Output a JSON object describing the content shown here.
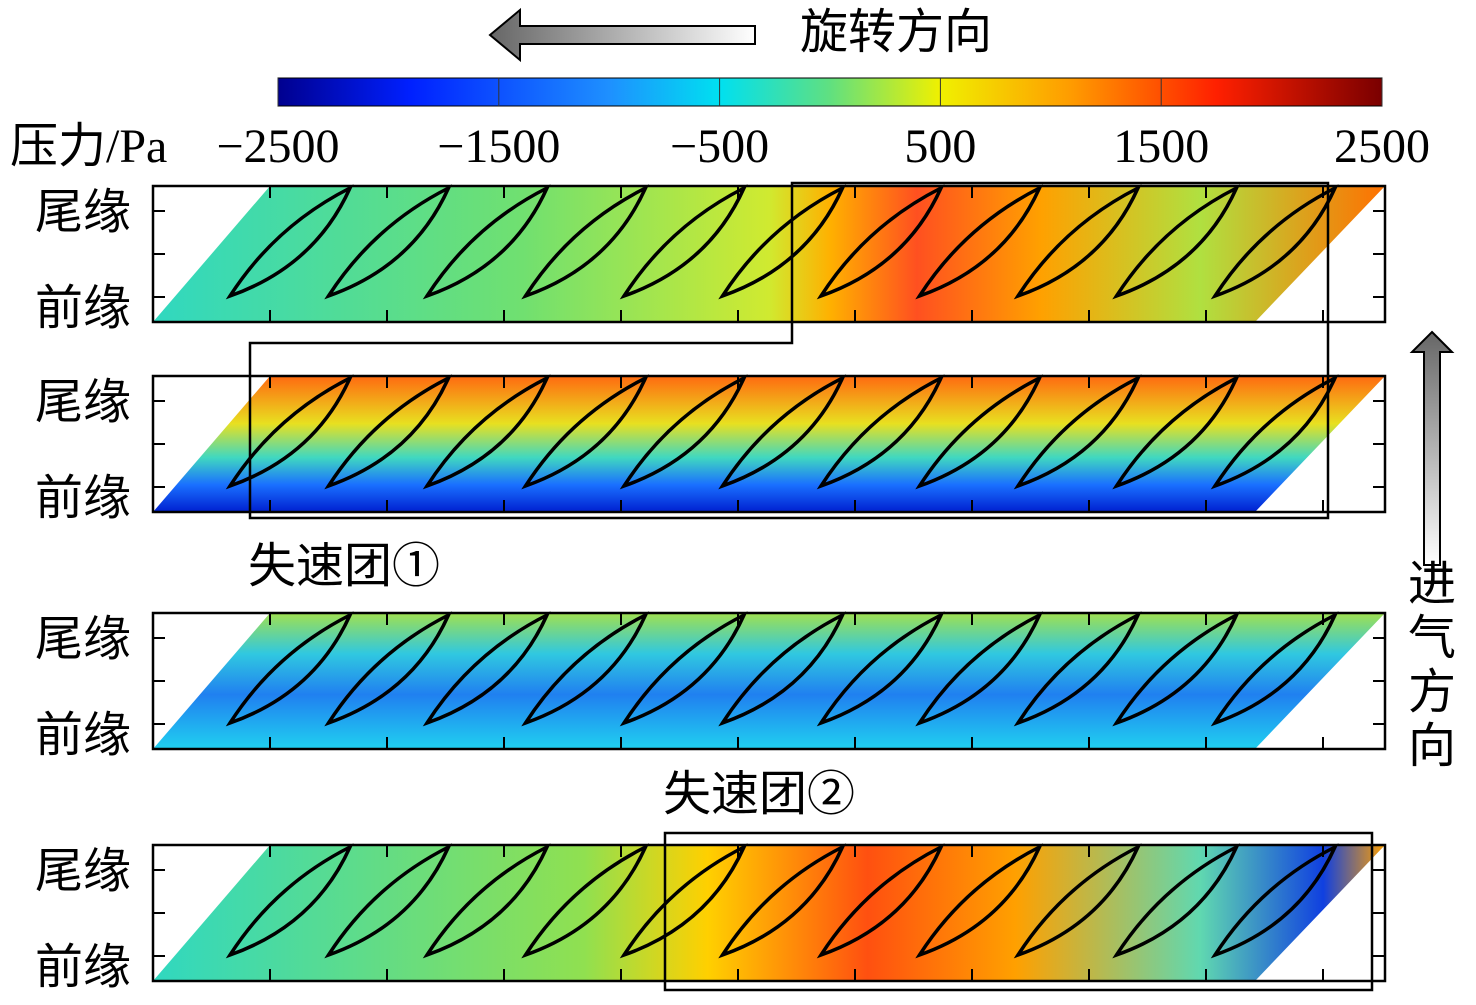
{
  "rotation_label": "旋转方向",
  "inflow_label": "进气方向",
  "colorbar": {
    "label": "压力/Pa",
    "lim": [
      -2500,
      2500
    ],
    "ticks": [
      {
        "value": -2500,
        "label": "−2500"
      },
      {
        "value": -1500,
        "label": "−1500"
      },
      {
        "value": -500,
        "label": "−500"
      },
      500,
      1500,
      2500
    ]
  },
  "panels": [
    {
      "trailing_edge": "尾缘",
      "leading_edge": "前缘"
    },
    {
      "trailing_edge": "尾缘",
      "leading_edge": "前缘"
    },
    {
      "trailing_edge": "尾缘",
      "leading_edge": "前缘"
    },
    {
      "trailing_edge": "尾缘",
      "leading_edge": "前缘"
    }
  ],
  "annotations": [
    "失速团①",
    "失速团②"
  ]
}
